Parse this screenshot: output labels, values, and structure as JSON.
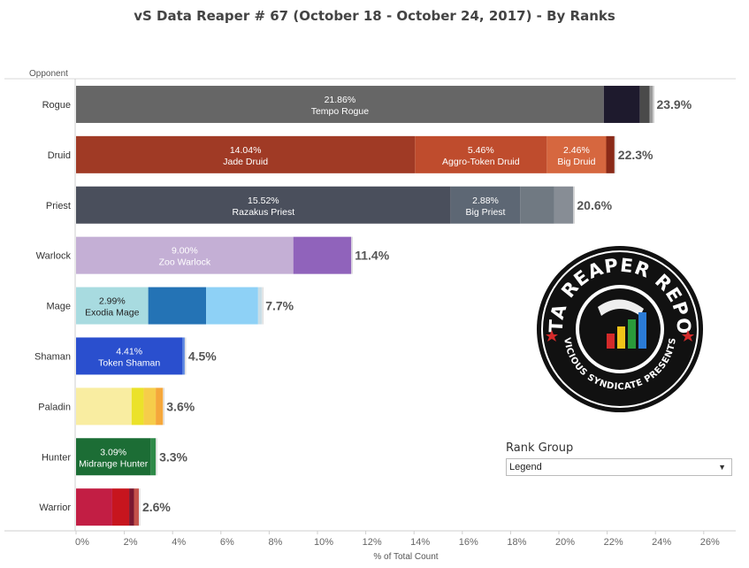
{
  "title": "vS Data Reaper #  67 (October 18 - October 24, 2017) - By Ranks",
  "rank_group": {
    "title": "Rank Group",
    "selected": "Legend"
  },
  "logo": {
    "top_text": "DATA REAPER REPORT",
    "bottom_text": "VICIOUS SYNDICATE PRESENTS"
  },
  "chart_data": {
    "type": "bar",
    "orientation": "horizontal",
    "stacked": true,
    "ylabel": "Opponent",
    "xlabel": "% of Total Count",
    "xlim": [
      0,
      27
    ],
    "xticks": [
      "0%",
      "2%",
      "4%",
      "6%",
      "8%",
      "10%",
      "12%",
      "14%",
      "16%",
      "18%",
      "20%",
      "22%",
      "24%",
      "26%"
    ],
    "categories": [
      "Rogue",
      "Druid",
      "Priest",
      "Warlock",
      "Mage",
      "Shaman",
      "Paladin",
      "Hunter",
      "Warrior"
    ],
    "totals": [
      "23.9%",
      "22.3%",
      "20.6%",
      "11.4%",
      "7.7%",
      "4.5%",
      "3.6%",
      "3.3%",
      "2.6%"
    ],
    "rows": [
      {
        "class": "Rogue",
        "segments": [
          {
            "value": 21.86,
            "color": "#666666",
            "label": "21.86%",
            "name": "Tempo Rogue"
          },
          {
            "value": 1.5,
            "color": "#1e1a2d"
          },
          {
            "value": 0.4,
            "color": "#4a4a4a"
          },
          {
            "value": 0.14,
            "color": "#9a9a9a"
          }
        ]
      },
      {
        "class": "Druid",
        "segments": [
          {
            "value": 14.04,
            "color": "#a03a25",
            "label": "14.04%",
            "name": "Jade Druid"
          },
          {
            "value": 5.46,
            "color": "#bf4c2d",
            "label": "5.46%",
            "name": "Aggro-Token Druid"
          },
          {
            "value": 2.46,
            "color": "#d6673f",
            "label": "2.46%",
            "name": "Big Druid"
          },
          {
            "value": 0.34,
            "color": "#8a2a18"
          }
        ]
      },
      {
        "class": "Priest",
        "segments": [
          {
            "value": 15.52,
            "color": "#4a4f5c",
            "label": "15.52%",
            "name": "Razakus Priest"
          },
          {
            "value": 2.88,
            "color": "#5d6774",
            "label": "2.88%",
            "name": "Big Priest"
          },
          {
            "value": 1.4,
            "color": "#707982"
          },
          {
            "value": 0.8,
            "color": "#878d95"
          }
        ]
      },
      {
        "class": "Warlock",
        "segments": [
          {
            "value": 9.0,
            "color": "#c4afd5",
            "label": "9.00%",
            "name": "Zoo Warlock"
          },
          {
            "value": 2.4,
            "color": "#9063bb"
          }
        ]
      },
      {
        "class": "Mage",
        "segments": [
          {
            "value": 2.99,
            "color": "#a8dbe0",
            "label": "2.99%",
            "name": "Exodia Mage",
            "dark": true
          },
          {
            "value": 2.4,
            "color": "#2473b5"
          },
          {
            "value": 2.15,
            "color": "#8ed1f6"
          },
          {
            "value": 0.16,
            "color": "#c8dde6"
          }
        ]
      },
      {
        "class": "Shaman",
        "segments": [
          {
            "value": 4.41,
            "color": "#2a4fce",
            "label": "4.41%",
            "name": "Token Shaman"
          },
          {
            "value": 0.09,
            "color": "#5b86e0"
          }
        ]
      },
      {
        "class": "Paladin",
        "segments": [
          {
            "value": 2.3,
            "color": "#f9eda1"
          },
          {
            "value": 0.5,
            "color": "#ebe22a"
          },
          {
            "value": 0.5,
            "color": "#f6cd4a"
          },
          {
            "value": 0.3,
            "color": "#f5a73a"
          }
        ]
      },
      {
        "class": "Hunter",
        "segments": [
          {
            "value": 3.09,
            "color": "#1c6d35",
            "label": "3.09%",
            "name": "Midrange Hunter"
          },
          {
            "value": 0.21,
            "color": "#2e8a48"
          }
        ]
      },
      {
        "class": "Warrior",
        "segments": [
          {
            "value": 1.5,
            "color": "#c21e44"
          },
          {
            "value": 0.7,
            "color": "#c7151e"
          },
          {
            "value": 0.2,
            "color": "#7a1730"
          },
          {
            "value": 0.2,
            "color": "#c4524a"
          }
        ]
      }
    ]
  }
}
